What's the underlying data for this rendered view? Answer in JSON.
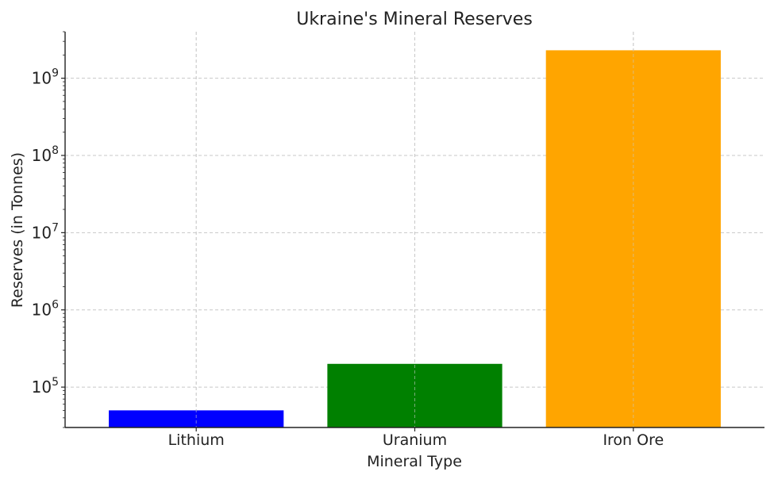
{
  "chart_data": {
    "type": "bar",
    "title": "Ukraine's Mineral Reserves",
    "xlabel": "Mineral Type",
    "ylabel": "Reserves (in Tonnes)",
    "categories": [
      "Lithium",
      "Uranium",
      "Iron Ore"
    ],
    "values": [
      50000,
      200000,
      2300000000
    ],
    "colors": [
      "#0000ff",
      "#008000",
      "#ffa500"
    ],
    "yscale": "log",
    "ylim": [
      30000,
      4000000000
    ],
    "yticks": [
      {
        "value": 100000,
        "base": "10",
        "exp": "5"
      },
      {
        "value": 1000000,
        "base": "10",
        "exp": "6"
      },
      {
        "value": 10000000,
        "base": "10",
        "exp": "7"
      },
      {
        "value": 100000000,
        "base": "10",
        "exp": "8"
      },
      {
        "value": 1000000000,
        "base": "10",
        "exp": "9"
      }
    ],
    "grid": true
  }
}
